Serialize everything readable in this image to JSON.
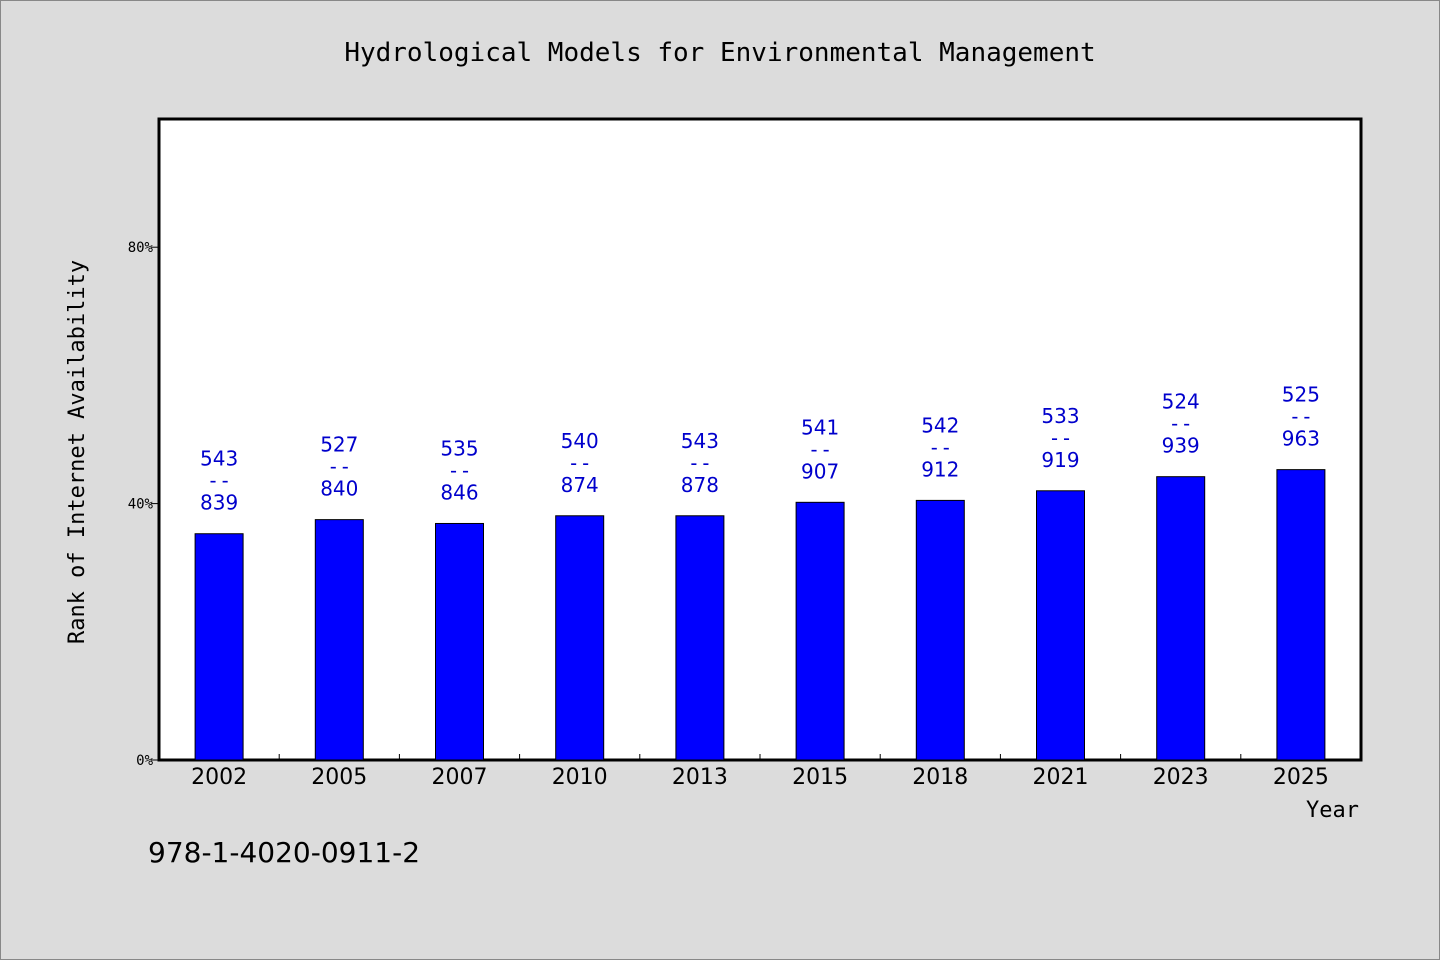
{
  "chart_data": {
    "type": "bar",
    "title": "Hydrological Models for Environmental Management",
    "xlabel": "Year",
    "ylabel": "Rank of Internet Availability",
    "categories": [
      "2002",
      "2005",
      "2007",
      "2010",
      "2013",
      "2015",
      "2018",
      "2021",
      "2023",
      "2025"
    ],
    "values": [
      35.3,
      37.5,
      36.9,
      38.1,
      38.1,
      40.2,
      40.5,
      42.0,
      44.2,
      45.3
    ],
    "labels_top": [
      "543",
      "527",
      "535",
      "540",
      "543",
      "541",
      "542",
      "533",
      "524",
      "525"
    ],
    "labels_sep": "--",
    "labels_bottom": [
      "839",
      "840",
      "846",
      "874",
      "878",
      "907",
      "912",
      "919",
      "939",
      "963"
    ],
    "yticks": [
      0,
      40,
      80
    ],
    "ytick_labels": [
      "0%",
      "40%",
      "80%"
    ],
    "ylim": [
      0,
      100
    ],
    "bar_color": "#0000ff",
    "label_color": "#0000cc",
    "grid": false
  },
  "footer": {
    "isbn": "978-1-4020-0911-2"
  }
}
